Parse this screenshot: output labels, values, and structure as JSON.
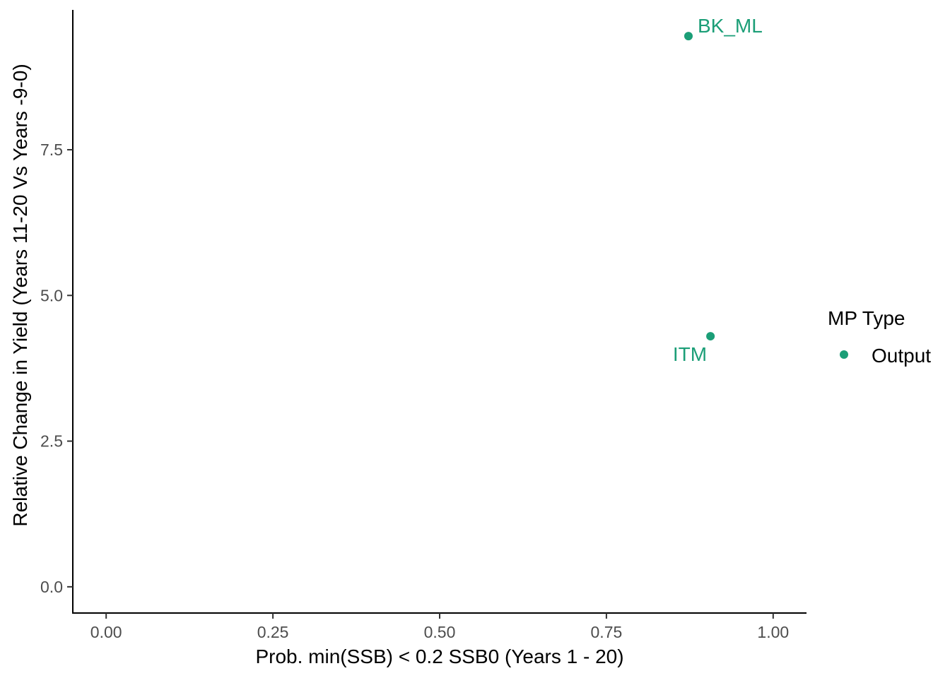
{
  "chart_data": {
    "type": "scatter",
    "title": "",
    "xlabel": "Prob. min(SSB) < 0.2 SSB0 (Years 1 - 20)",
    "ylabel": "Relative Change in Yield (Years 11-20 Vs Years -9-0)",
    "xlim": [
      -0.05,
      1.05
    ],
    "ylim": [
      -0.45,
      9.9
    ],
    "x_ticks": [
      "0.00",
      "0.25",
      "0.50",
      "0.75",
      "1.00"
    ],
    "x_tick_values": [
      0,
      0.25,
      0.5,
      0.75,
      1.0
    ],
    "y_ticks": [
      "0.0",
      "2.5",
      "5.0",
      "7.5"
    ],
    "y_tick_values": [
      0,
      2.5,
      5.0,
      7.5
    ],
    "grid": false,
    "legend": {
      "title": "MP Type",
      "position": "right",
      "entries": [
        {
          "label": "Output",
          "color": "#1b9e77"
        }
      ]
    },
    "series": [
      {
        "name": "Output",
        "color": "#1b9e77",
        "points": [
          {
            "label": "BK_ML",
            "x": 0.873,
            "y": 9.45
          },
          {
            "label": "ITM",
            "x": 0.906,
            "y": 4.3
          }
        ]
      }
    ]
  }
}
